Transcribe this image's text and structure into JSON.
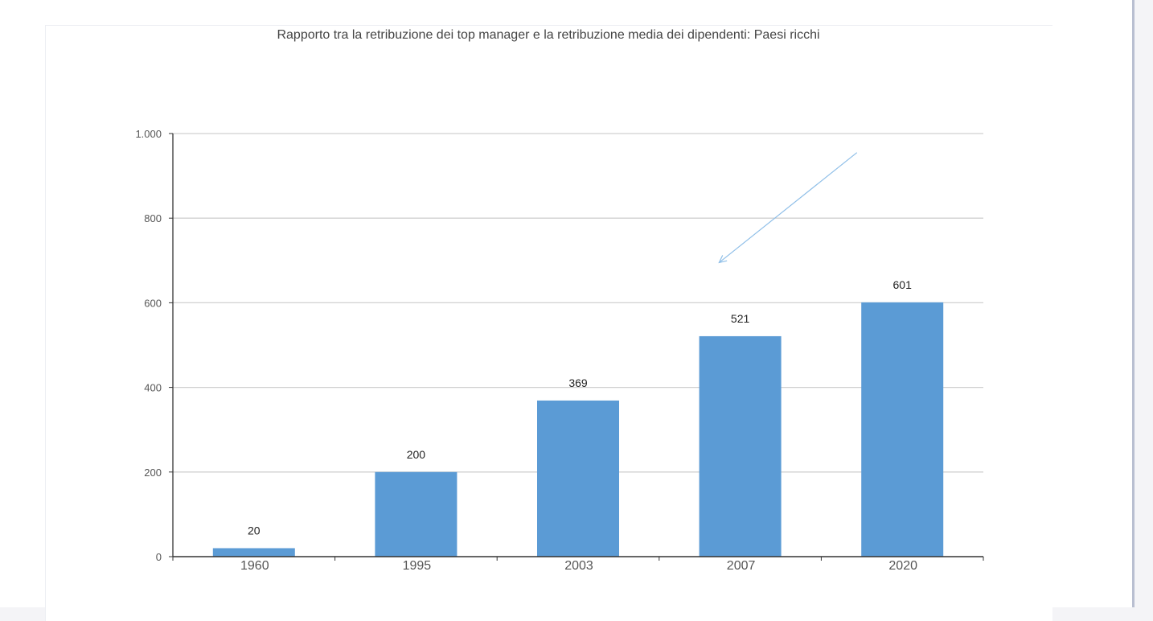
{
  "chart_data": {
    "type": "bar",
    "title": "Rapporto tra la retribuzione dei top manager e la retribuzione media dei dipendenti: Paesi ricchi",
    "categories": [
      "1960",
      "1995",
      "2003",
      "2007",
      "2020"
    ],
    "values": [
      20,
      200,
      369,
      521,
      601
    ],
    "data_labels": [
      "20",
      "200",
      "369",
      "521",
      "601"
    ],
    "y_ticks": [
      0,
      200,
      400,
      600,
      800,
      1000
    ],
    "y_tick_labels": [
      "0",
      "200",
      "400",
      "600",
      "800",
      "1.000"
    ],
    "ylim": [
      0,
      1000
    ],
    "grid": true,
    "legend": "none",
    "bar_color": "#5b9bd5",
    "grid_color": "#d0d0d0",
    "annotations": [
      {
        "type": "arrow",
        "from": {
          "x_category_fraction": 4.22,
          "y": 955
        },
        "to": {
          "x_category_fraction": 3.37,
          "y": 695
        },
        "color": "#8fbfe8"
      }
    ]
  }
}
